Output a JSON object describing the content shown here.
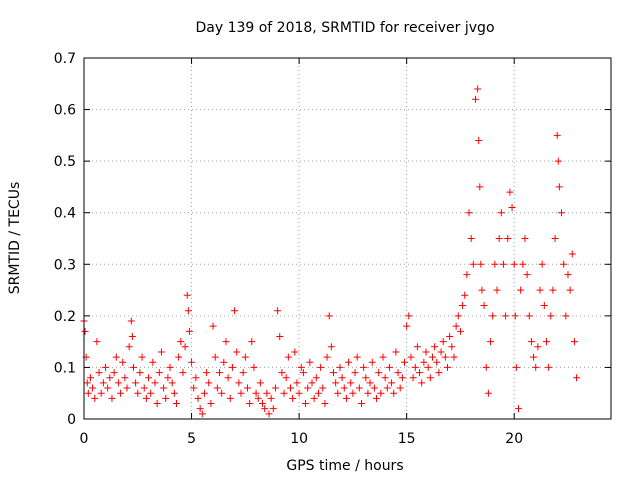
{
  "chart_data": {
    "type": "scatter",
    "title": "Day 139 of 2018, SRMTID for receiver jvgo",
    "xlabel": "GPS time / hours",
    "ylabel": "SRMTID / TECUs",
    "xlim": [
      0,
      24.5
    ],
    "ylim": [
      0,
      0.7
    ],
    "xticks": [
      0,
      5,
      10,
      15,
      20
    ],
    "xtick_labels": [
      "0",
      "5",
      "10",
      "15",
      "20"
    ],
    "yticks": [
      0,
      0.1,
      0.2,
      0.3,
      0.4,
      0.5,
      0.6,
      0.7
    ],
    "ytick_labels": [
      "0",
      "0.1",
      "0.2",
      "0.3",
      "0.4",
      "0.5",
      "0.6",
      "0.7"
    ],
    "grid": true,
    "marker": "+",
    "series": [
      {
        "name": "SRMTID",
        "color": "#ff0000",
        "x": [
          0.0,
          0.05,
          0.1,
          0.15,
          0.2,
          0.3,
          0.4,
          0.5,
          0.6,
          0.7,
          0.8,
          0.9,
          1.0,
          1.1,
          1.2,
          1.3,
          1.4,
          1.5,
          1.6,
          1.7,
          1.8,
          1.9,
          2.0,
          2.1,
          2.2,
          2.25,
          2.3,
          2.4,
          2.5,
          2.6,
          2.7,
          2.8,
          2.9,
          3.0,
          3.1,
          3.2,
          3.3,
          3.4,
          3.5,
          3.6,
          3.7,
          3.8,
          3.9,
          4.0,
          4.1,
          4.2,
          4.3,
          4.4,
          4.5,
          4.6,
          4.7,
          4.8,
          4.85,
          4.9,
          5.0,
          5.1,
          5.2,
          5.3,
          5.4,
          5.5,
          5.6,
          5.7,
          5.8,
          5.9,
          6.0,
          6.1,
          6.2,
          6.3,
          6.4,
          6.5,
          6.6,
          6.7,
          6.8,
          6.9,
          7.0,
          7.1,
          7.2,
          7.3,
          7.4,
          7.5,
          7.6,
          7.7,
          7.8,
          7.9,
          8.0,
          8.1,
          8.2,
          8.3,
          8.4,
          8.5,
          8.6,
          8.7,
          8.8,
          8.9,
          9.0,
          9.1,
          9.2,
          9.3,
          9.4,
          9.5,
          9.6,
          9.7,
          9.8,
          9.9,
          10.0,
          10.1,
          10.2,
          10.3,
          10.4,
          10.5,
          10.6,
          10.7,
          10.8,
          10.9,
          11.0,
          11.1,
          11.2,
          11.3,
          11.4,
          11.5,
          11.6,
          11.7,
          11.8,
          11.9,
          12.0,
          12.1,
          12.2,
          12.3,
          12.4,
          12.5,
          12.6,
          12.7,
          12.8,
          12.9,
          13.0,
          13.1,
          13.2,
          13.3,
          13.4,
          13.5,
          13.6,
          13.7,
          13.8,
          13.9,
          14.0,
          14.1,
          14.2,
          14.3,
          14.4,
          14.5,
          14.6,
          14.7,
          14.8,
          14.9,
          15.0,
          15.1,
          15.2,
          15.3,
          15.4,
          15.5,
          15.6,
          15.7,
          15.8,
          15.9,
          16.0,
          16.1,
          16.2,
          16.3,
          16.4,
          16.5,
          16.6,
          16.7,
          16.8,
          16.9,
          17.0,
          17.1,
          17.2,
          17.3,
          17.4,
          17.5,
          17.6,
          17.7,
          17.8,
          17.9,
          18.0,
          18.1,
          18.2,
          18.3,
          18.35,
          18.4,
          18.45,
          18.5,
          18.6,
          18.7,
          18.8,
          18.9,
          19.0,
          19.1,
          19.2,
          19.3,
          19.4,
          19.5,
          19.6,
          19.7,
          19.8,
          19.9,
          20.0,
          20.05,
          20.1,
          20.2,
          20.3,
          20.4,
          20.5,
          20.6,
          20.7,
          20.8,
          20.9,
          21.0,
          21.1,
          21.2,
          21.3,
          21.4,
          21.5,
          21.6,
          21.7,
          21.8,
          21.9,
          22.0,
          22.05,
          22.1,
          22.2,
          22.3,
          22.4,
          22.5,
          22.6,
          22.7,
          22.8,
          22.9
        ],
        "y": [
          0.19,
          0.17,
          0.12,
          0.07,
          0.05,
          0.08,
          0.06,
          0.04,
          0.15,
          0.09,
          0.05,
          0.07,
          0.1,
          0.06,
          0.08,
          0.04,
          0.09,
          0.12,
          0.07,
          0.05,
          0.11,
          0.08,
          0.06,
          0.14,
          0.19,
          0.16,
          0.1,
          0.07,
          0.05,
          0.09,
          0.12,
          0.06,
          0.04,
          0.08,
          0.05,
          0.11,
          0.07,
          0.03,
          0.09,
          0.13,
          0.06,
          0.04,
          0.08,
          0.1,
          0.07,
          0.05,
          0.03,
          0.12,
          0.15,
          0.09,
          0.14,
          0.24,
          0.21,
          0.17,
          0.11,
          0.06,
          0.08,
          0.04,
          0.02,
          0.01,
          0.05,
          0.09,
          0.07,
          0.03,
          0.18,
          0.12,
          0.06,
          0.09,
          0.05,
          0.11,
          0.15,
          0.08,
          0.04,
          0.1,
          0.21,
          0.13,
          0.07,
          0.05,
          0.09,
          0.12,
          0.06,
          0.03,
          0.15,
          0.1,
          0.05,
          0.04,
          0.07,
          0.03,
          0.02,
          0.05,
          0.01,
          0.04,
          0.02,
          0.06,
          0.21,
          0.16,
          0.09,
          0.05,
          0.08,
          0.12,
          0.06,
          0.04,
          0.13,
          0.07,
          0.05,
          0.1,
          0.09,
          0.03,
          0.06,
          0.11,
          0.07,
          0.04,
          0.08,
          0.05,
          0.1,
          0.06,
          0.03,
          0.12,
          0.2,
          0.14,
          0.09,
          0.07,
          0.05,
          0.1,
          0.08,
          0.06,
          0.04,
          0.11,
          0.07,
          0.05,
          0.09,
          0.12,
          0.06,
          0.03,
          0.1,
          0.08,
          0.05,
          0.07,
          0.11,
          0.06,
          0.04,
          0.09,
          0.05,
          0.12,
          0.08,
          0.06,
          0.1,
          0.07,
          0.05,
          0.13,
          0.09,
          0.06,
          0.08,
          0.11,
          0.18,
          0.2,
          0.12,
          0.08,
          0.1,
          0.14,
          0.09,
          0.07,
          0.11,
          0.13,
          0.1,
          0.08,
          0.12,
          0.14,
          0.11,
          0.09,
          0.13,
          0.15,
          0.12,
          0.1,
          0.16,
          0.14,
          0.12,
          0.18,
          0.2,
          0.17,
          0.22,
          0.24,
          0.28,
          0.4,
          0.35,
          0.3,
          0.62,
          0.64,
          0.54,
          0.45,
          0.3,
          0.25,
          0.22,
          0.1,
          0.05,
          0.15,
          0.2,
          0.3,
          0.25,
          0.35,
          0.4,
          0.3,
          0.2,
          0.35,
          0.44,
          0.41,
          0.3,
          0.2,
          0.1,
          0.02,
          0.25,
          0.3,
          0.35,
          0.28,
          0.2,
          0.15,
          0.12,
          0.1,
          0.14,
          0.25,
          0.3,
          0.22,
          0.15,
          0.1,
          0.2,
          0.25,
          0.35,
          0.55,
          0.5,
          0.45,
          0.4,
          0.3,
          0.2,
          0.28,
          0.25,
          0.32,
          0.15,
          0.08
        ]
      }
    ]
  }
}
